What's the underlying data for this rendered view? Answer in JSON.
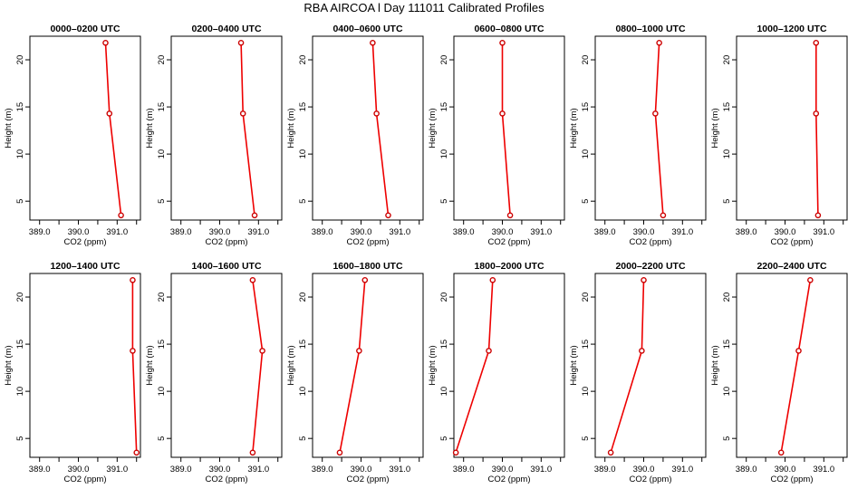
{
  "title": "RBA AIRCOA l  Day 111011  Calibrated Profiles",
  "chart_data": {
    "type": "line",
    "xlabel": "CO2 (ppm)",
    "ylabel": "Height (m)",
    "xlim": [
      388.75,
      391.6
    ],
    "ylim": [
      3,
      22.5
    ],
    "xticks": [
      "389.0",
      "390.0",
      "391.0"
    ],
    "xticks_minor": [
      389.5,
      390.5,
      391.5
    ],
    "yticks": [
      "5",
      "10",
      "15",
      "20"
    ],
    "heights": [
      3.5,
      14.3,
      21.8
    ],
    "grid": false,
    "line_color": "#ee0000",
    "panels": [
      {
        "title": "0000–0200 UTC",
        "co2": [
          391.1,
          390.8,
          390.7
        ]
      },
      {
        "title": "0200–0400 UTC",
        "co2": [
          390.9,
          390.6,
          390.55
        ]
      },
      {
        "title": "0400–0600 UTC",
        "co2": [
          390.7,
          390.4,
          390.3
        ]
      },
      {
        "title": "0600–0800 UTC",
        "co2": [
          390.2,
          390.0,
          390.0
        ]
      },
      {
        "title": "0800–1000 UTC",
        "co2": [
          390.5,
          390.3,
          390.4
        ]
      },
      {
        "title": "1000–1200 UTC",
        "co2": [
          390.85,
          390.8,
          390.8
        ]
      },
      {
        "title": "1200–1400 UTC",
        "co2": [
          391.5,
          391.4,
          391.4
        ]
      },
      {
        "title": "1400–1600 UTC",
        "co2": [
          390.85,
          391.1,
          390.85
        ]
      },
      {
        "title": "1600–1800 UTC",
        "co2": [
          389.45,
          389.95,
          390.1
        ]
      },
      {
        "title": "1800–2000 UTC",
        "co2": [
          388.8,
          389.65,
          389.75
        ]
      },
      {
        "title": "2000–2200 UTC",
        "co2": [
          389.15,
          389.95,
          390.0
        ]
      },
      {
        "title": "2200–2400 UTC",
        "co2": [
          389.9,
          390.35,
          390.65
        ]
      }
    ]
  }
}
